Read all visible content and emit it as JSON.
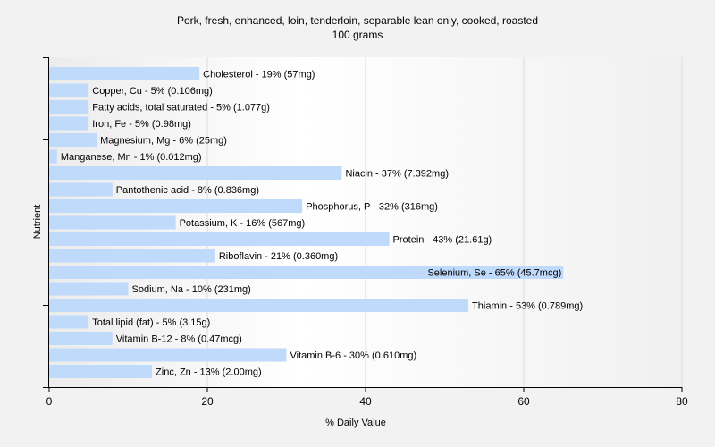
{
  "chart_data": {
    "type": "bar",
    "orientation": "horizontal",
    "title": "Pork, fresh, enhanced, loin, tenderloin, separable lean only, cooked, roasted",
    "subtitle": "100 grams",
    "xlabel": "% Daily Value",
    "ylabel": "Nutrient",
    "xlim": [
      0,
      80
    ],
    "xticks": [
      0,
      20,
      40,
      60,
      80
    ],
    "grid": "vertical",
    "bar_color": "#c0dafc",
    "categories": [
      "Cholesterol",
      "Copper, Cu",
      "Fatty acids, total saturated",
      "Iron, Fe",
      "Magnesium, Mg",
      "Manganese, Mn",
      "Niacin",
      "Pantothenic acid",
      "Phosphorus, P",
      "Potassium, K",
      "Protein",
      "Riboflavin",
      "Selenium, Se",
      "Sodium, Na",
      "Thiamin",
      "Total lipid (fat)",
      "Vitamin B-12",
      "Vitamin B-6",
      "Zinc, Zn"
    ],
    "values": [
      19,
      5,
      5,
      5,
      6,
      1,
      37,
      8,
      32,
      16,
      43,
      21,
      65,
      10,
      53,
      5,
      8,
      30,
      13
    ],
    "labels": [
      "Cholesterol - 19% (57mg)",
      "Copper, Cu - 5% (0.106mg)",
      "Fatty acids, total saturated - 5% (1.077g)",
      "Iron, Fe - 5% (0.98mg)",
      "Magnesium, Mg - 6% (25mg)",
      "Manganese, Mn - 1% (0.012mg)",
      "Niacin - 37% (7.392mg)",
      "Pantothenic acid - 8% (0.836mg)",
      "Phosphorus, P - 32% (316mg)",
      "Potassium, K - 16% (567mg)",
      "Protein - 43% (21.61g)",
      "Riboflavin - 21% (0.360mg)",
      "Selenium, Se - 65% (45.7mcg)",
      "Sodium, Na - 10% (231mg)",
      "Thiamin - 53% (0.789mg)",
      "Total lipid (fat) - 5% (3.15g)",
      "Vitamin B-12 - 8% (0.47mcg)",
      "Vitamin B-6 - 30% (0.610mg)",
      "Zinc, Zn - 13% (2.00mg)"
    ]
  }
}
